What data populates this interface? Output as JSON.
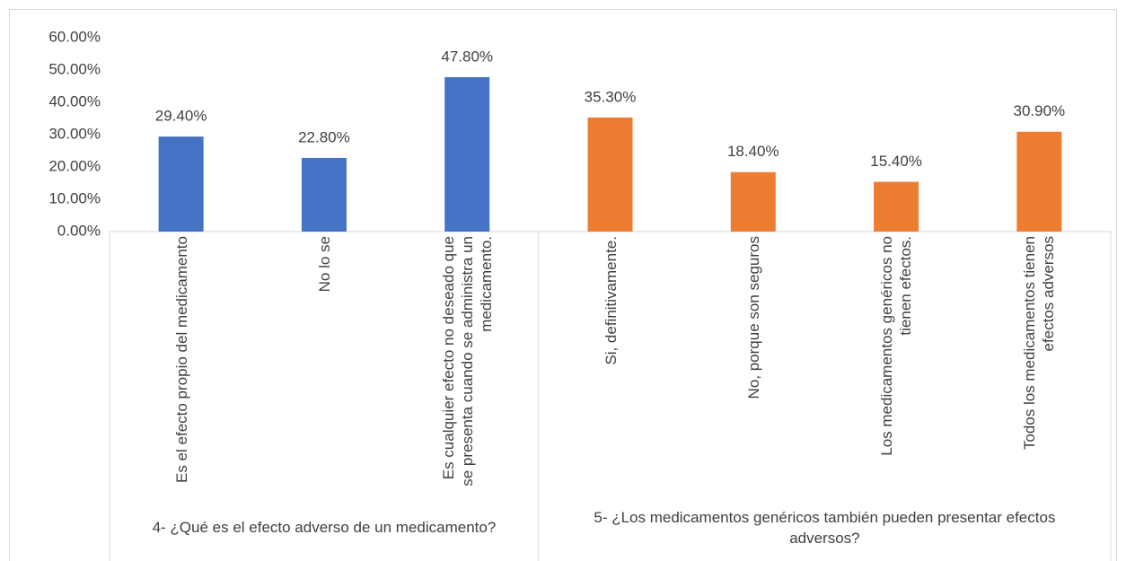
{
  "chart_data": {
    "type": "bar",
    "ylim": [
      0,
      60
    ],
    "yticks": [
      {
        "value": 0,
        "label": "0.00%"
      },
      {
        "value": 10,
        "label": "10.00%"
      },
      {
        "value": 20,
        "label": "20.00%"
      },
      {
        "value": 30,
        "label": "30.00%"
      },
      {
        "value": 40,
        "label": "40.00%"
      },
      {
        "value": 50,
        "label": "50.00%"
      },
      {
        "value": 60,
        "label": "60.00%"
      }
    ],
    "groups": [
      {
        "name": "4- ¿Qué es el efecto adverso de un medicamento?",
        "color": "#4472c4",
        "categories": [
          "Es el efecto propio del medicamento",
          "No lo se",
          "Es cualquier efecto no deseado que se presenta cuando se administra un medicamento."
        ],
        "values": [
          29.4,
          22.8,
          47.8
        ],
        "value_labels": [
          "29.40%",
          "22.80%",
          "47.80%"
        ]
      },
      {
        "name": "5- ¿Los medicamentos genéricos también pueden presentar efectos adversos?",
        "color": "#ed7d31",
        "categories": [
          "Si, definitivamente.",
          "No, porque son seguros",
          "Los medicamentos genéricos no tienen efectos.",
          "Todos los medicamentos tienen efectos adversos"
        ],
        "values": [
          35.3,
          18.4,
          15.4,
          30.9
        ],
        "value_labels": [
          "35.30%",
          "18.40%",
          "15.40%",
          "30.90%"
        ]
      }
    ]
  }
}
